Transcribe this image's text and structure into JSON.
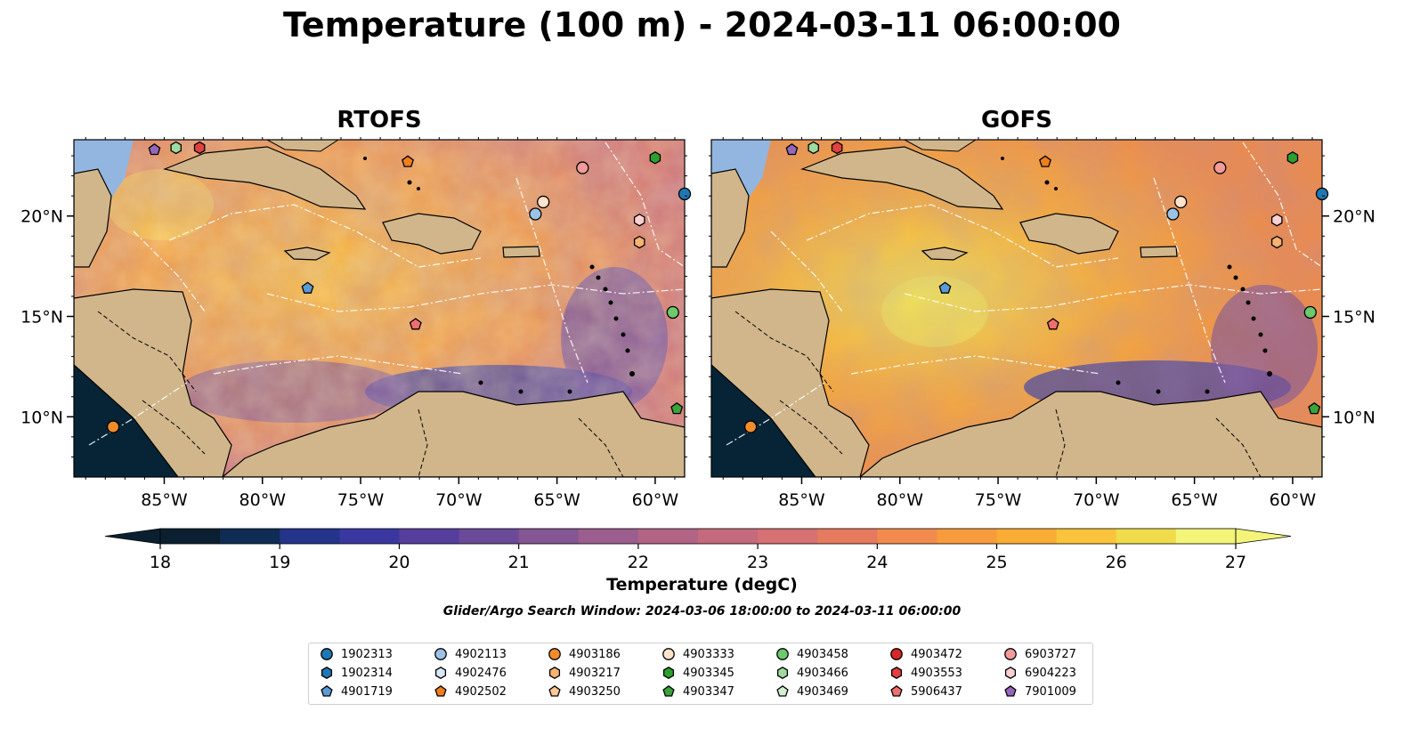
{
  "title": "Temperature (100 m) - 2024-03-11 06:00:00",
  "panels": [
    {
      "title": "RTOFS"
    },
    {
      "title": "GOFS"
    }
  ],
  "axes": {
    "lon_ticks": [
      "85°W",
      "80°W",
      "75°W",
      "70°W",
      "65°W",
      "60°W"
    ],
    "lon_values": [
      -85,
      -80,
      -75,
      -70,
      -65,
      -60
    ],
    "lat_ticks": [
      "20°N",
      "15°N",
      "10°N"
    ],
    "lat_values": [
      20,
      15,
      10
    ],
    "lon_range": [
      -89.6,
      -58.5
    ],
    "lat_range": [
      7.0,
      23.8
    ]
  },
  "colorbar": {
    "label": "Temperature (degC)",
    "ticks": [
      "18",
      "19",
      "20",
      "21",
      "22",
      "23",
      "24",
      "25",
      "26",
      "27"
    ],
    "range": [
      18,
      27
    ],
    "extend": "both",
    "colors": [
      "#0a2030",
      "#0f2c55",
      "#24348a",
      "#3a38a0",
      "#563e9e",
      "#6b4a99",
      "#845693",
      "#9c5e8e",
      "#b26485",
      "#c46a7c",
      "#d67072",
      "#e57a5e",
      "#f28a4d",
      "#f79b3c",
      "#f9ad35",
      "#f9c43c",
      "#f0dc4a",
      "#f4f578"
    ]
  },
  "search_window": "Glider/Argo Search Window: 2024-03-06 18:00:00 to 2024-03-11 06:00:00",
  "floats": [
    {
      "id": "1902313",
      "marker": "circle",
      "color": "#1f77b4"
    },
    {
      "id": "1902314",
      "marker": "hexagon",
      "color": "#1f77b4"
    },
    {
      "id": "4901719",
      "marker": "pentagon",
      "color": "#5b9bd5"
    },
    {
      "id": "4902113",
      "marker": "circle",
      "color": "#9cc3e6"
    },
    {
      "id": "4902476",
      "marker": "hexagon",
      "color": "#d6e7f5"
    },
    {
      "id": "4902502",
      "marker": "pentagon",
      "color": "#f07f1a"
    },
    {
      "id": "4903186",
      "marker": "circle",
      "color": "#f28c2b"
    },
    {
      "id": "4903217",
      "marker": "hexagon",
      "color": "#f8b373"
    },
    {
      "id": "4903250",
      "marker": "pentagon",
      "color": "#fbc896"
    },
    {
      "id": "4903333",
      "marker": "circle",
      "color": "#fde3cb"
    },
    {
      "id": "4903345",
      "marker": "hexagon",
      "color": "#2ca02c"
    },
    {
      "id": "4903347",
      "marker": "pentagon",
      "color": "#3aa33a"
    },
    {
      "id": "4903458",
      "marker": "circle",
      "color": "#6cc96c"
    },
    {
      "id": "4903466",
      "marker": "hexagon",
      "color": "#9fdb9f"
    },
    {
      "id": "4903469",
      "marker": "pentagon",
      "color": "#d3f0d3"
    },
    {
      "id": "4903472",
      "marker": "circle",
      "color": "#d62728"
    },
    {
      "id": "4903553",
      "marker": "hexagon",
      "color": "#e04141"
    },
    {
      "id": "5906437",
      "marker": "pentagon",
      "color": "#ef6f6f"
    },
    {
      "id": "6903727",
      "marker": "circle",
      "color": "#f39a9a"
    },
    {
      "id": "6904223",
      "marker": "hexagon",
      "color": "#fbd0d0"
    },
    {
      "id": "7901009",
      "marker": "pentagon",
      "color": "#9467bd"
    }
  ],
  "float_positions": [
    {
      "id": "4903186",
      "lon": -87.6,
      "lat": 9.5
    },
    {
      "id": "7901009",
      "lon": -85.5,
      "lat": 23.3
    },
    {
      "id": "4903466",
      "lon": -84.4,
      "lat": 23.4
    },
    {
      "id": "4903553",
      "lon": -83.2,
      "lat": 23.4
    },
    {
      "id": "4901719",
      "lon": -77.7,
      "lat": 16.4
    },
    {
      "id": "4902502",
      "lon": -72.6,
      "lat": 22.7
    },
    {
      "id": "5906437",
      "lon": -72.2,
      "lat": 14.6
    },
    {
      "id": "6903727",
      "lon": -63.7,
      "lat": 22.4
    },
    {
      "id": "4903333",
      "lon": -65.7,
      "lat": 20.7
    },
    {
      "id": "4902113",
      "lon": -66.1,
      "lat": 20.1
    },
    {
      "id": "6904223",
      "lon": -60.8,
      "lat": 19.8
    },
    {
      "id": "4903217",
      "lon": -60.8,
      "lat": 18.7
    },
    {
      "id": "4903345",
      "lon": -60.0,
      "lat": 22.9
    },
    {
      "id": "4903458",
      "lon": -59.1,
      "lat": 15.2
    },
    {
      "id": "4903347",
      "lon": -58.9,
      "lat": 10.4
    },
    {
      "id": "1902313",
      "lon": -58.5,
      "lat": 21.1
    }
  ]
}
